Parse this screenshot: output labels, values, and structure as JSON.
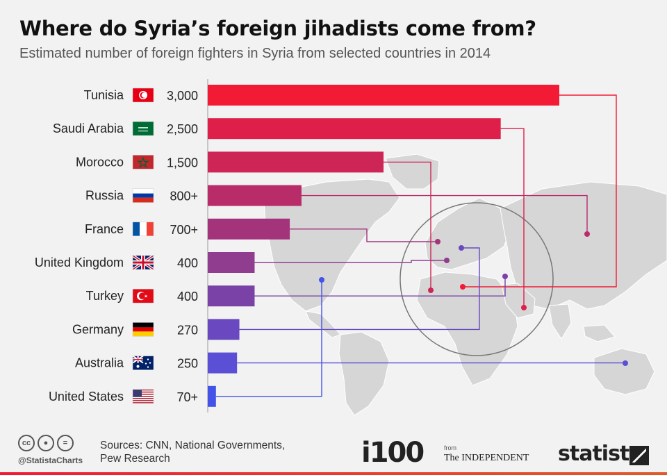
{
  "header": {
    "title": "Where do Syria’s foreign jihadists come from?",
    "subtitle": "Estimated number of foreign fighters in Syria from selected countries in 2014"
  },
  "chart_data": {
    "type": "bar",
    "orientation": "horizontal",
    "categories": [
      "Tunisia",
      "Saudi Arabia",
      "Morocco",
      "Russia",
      "France",
      "United Kingdom",
      "Turkey",
      "Germany",
      "Australia",
      "United States"
    ],
    "values": [
      3000,
      2500,
      1500,
      800,
      700,
      400,
      400,
      270,
      250,
      70
    ],
    "value_labels": [
      "3,000",
      "2,500",
      "1,500",
      "800+",
      "700+",
      "400",
      "400",
      "270",
      "250",
      "70+"
    ],
    "bar_colors": [
      "#f21a35",
      "#dd1f4a",
      "#cc2556",
      "#b82c6a",
      "#a3347c",
      "#903c8f",
      "#7a42a6",
      "#6a48bf",
      "#5a4fd5",
      "#4353e8"
    ],
    "flags": [
      "tunisia-flag",
      "saudi-arabia-flag",
      "morocco-flag",
      "russia-flag",
      "france-flag",
      "united-kingdom-flag",
      "turkey-flag",
      "germany-flag",
      "australia-flag",
      "united-states-flag"
    ]
  },
  "footer": {
    "handle": "@StatistaCharts",
    "sources": "Sources: CNN, National Governments, Pew Research",
    "i100": "i100",
    "from": "from",
    "independent": "The INDEPENDENT",
    "statista": "statista"
  }
}
